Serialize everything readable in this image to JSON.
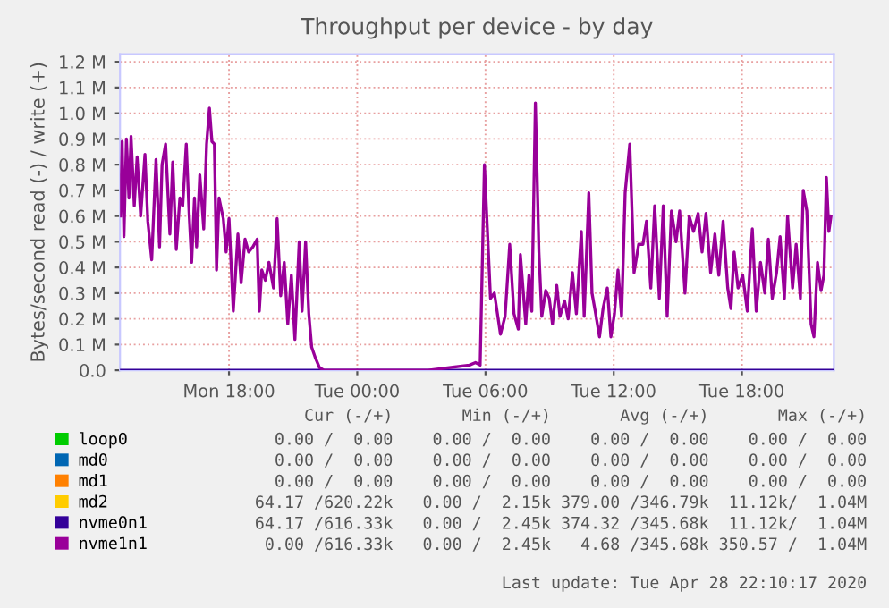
{
  "chart_data": {
    "type": "line",
    "title": "Throughput per device - by day",
    "ylabel": "Bytes/second read (-) / write (+)",
    "xlim": [
      "2020-04-27T12:54",
      "2020-04-28T22:18"
    ],
    "xticks": [
      {
        "value": "2020-04-27T18:00",
        "label": "Mon 18:00"
      },
      {
        "value": "2020-04-28T00:00",
        "label": "Tue 00:00"
      },
      {
        "value": "2020-04-28T06:00",
        "label": "Tue 06:00"
      },
      {
        "value": "2020-04-28T12:00",
        "label": "Tue 12:00"
      },
      {
        "value": "2020-04-28T18:00",
        "label": "Tue 18:00"
      }
    ],
    "ylim": [
      0,
      1230000
    ],
    "yticks": [
      {
        "value": 0,
        "label": "0.0"
      },
      {
        "value": 100000,
        "label": "0.1 M"
      },
      {
        "value": 200000,
        "label": "0.2 M"
      },
      {
        "value": 300000,
        "label": "0.3 M"
      },
      {
        "value": 400000,
        "label": "0.4 M"
      },
      {
        "value": 500000,
        "label": "0.5 M"
      },
      {
        "value": 600000,
        "label": "0.6 M"
      },
      {
        "value": 700000,
        "label": "0.7 M"
      },
      {
        "value": 800000,
        "label": "0.8 M"
      },
      {
        "value": 900000,
        "label": "0.9 M"
      },
      {
        "value": 1000000,
        "label": "1.0 M"
      },
      {
        "value": 1100000,
        "label": "1.1 M"
      },
      {
        "value": 1200000,
        "label": "1.2 M"
      }
    ],
    "grid": true,
    "legend": "bottom",
    "marker": "none",
    "line_style": "solid",
    "series": [
      {
        "name": "loop0",
        "color": "#00cc00"
      },
      {
        "name": "md0",
        "color": "#0066b3"
      },
      {
        "name": "md1",
        "color": "#ff8000"
      },
      {
        "name": "md2",
        "color": "#ffcc00"
      },
      {
        "name": "nvme0n1",
        "color": "#330099",
        "x": [
          "2020-04-27T12:54",
          "2020-04-28T22:18"
        ],
        "values": [
          0,
          0
        ]
      },
      {
        "name": "nvme1n1",
        "color": "#990099",
        "x": [
          "2020-04-27T12:55",
          "2020-04-27T13:00",
          "2020-04-27T13:05",
          "2020-04-27T13:12",
          "2020-04-27T13:19",
          "2020-04-27T13:25",
          "2020-04-27T13:34",
          "2020-04-27T13:42",
          "2020-04-27T13:52",
          "2020-04-27T14:04",
          "2020-04-27T14:12",
          "2020-04-27T14:23",
          "2020-04-27T14:35",
          "2020-04-27T14:45",
          "2020-04-27T14:52",
          "2020-04-27T15:02",
          "2020-04-27T15:14",
          "2020-04-27T15:22",
          "2020-04-27T15:32",
          "2020-04-27T15:42",
          "2020-04-27T15:50",
          "2020-04-27T16:00",
          "2020-04-27T16:08",
          "2020-04-27T16:15",
          "2020-04-27T16:23",
          "2020-04-27T16:29",
          "2020-04-27T16:38",
          "2020-04-27T16:49",
          "2020-04-27T16:57",
          "2020-04-27T17:05",
          "2020-04-27T17:12",
          "2020-04-27T17:19",
          "2020-04-27T17:25",
          "2020-04-27T17:32",
          "2020-04-27T17:44",
          "2020-04-27T17:52",
          "2020-04-27T18:00",
          "2020-04-27T18:12",
          "2020-04-27T18:25",
          "2020-04-27T18:34",
          "2020-04-27T18:45",
          "2020-04-27T18:55",
          "2020-04-27T19:07",
          "2020-04-27T19:19",
          "2020-04-27T19:25",
          "2020-04-27T19:32",
          "2020-04-27T19:42",
          "2020-04-27T19:52",
          "2020-04-27T20:05",
          "2020-04-27T20:15",
          "2020-04-27T20:25",
          "2020-04-27T20:35",
          "2020-04-27T20:45",
          "2020-04-27T20:55",
          "2020-04-27T21:05",
          "2020-04-27T21:17",
          "2020-04-27T21:25",
          "2020-04-27T21:35",
          "2020-04-27T21:44",
          "2020-04-27T21:52",
          "2020-04-27T22:02",
          "2020-04-27T22:14",
          "2020-04-27T22:27",
          "2020-04-28T00:00",
          "2020-04-28T03:19",
          "2020-04-28T05:15",
          "2020-04-28T05:32",
          "2020-04-28T05:45",
          "2020-04-28T05:57",
          "2020-04-28T06:14",
          "2020-04-28T06:25",
          "2020-04-28T06:42",
          "2020-04-28T06:55",
          "2020-04-28T07:08",
          "2020-04-28T07:20",
          "2020-04-28T07:32",
          "2020-04-28T07:38",
          "2020-04-28T07:53",
          "2020-04-28T08:02",
          "2020-04-28T08:10",
          "2020-04-28T08:20",
          "2020-04-28T08:30",
          "2020-04-28T08:38",
          "2020-04-28T08:49",
          "2020-04-28T08:59",
          "2020-04-28T09:08",
          "2020-04-28T09:20",
          "2020-04-28T09:29",
          "2020-04-28T09:42",
          "2020-04-28T09:52",
          "2020-04-28T10:04",
          "2020-04-28T10:15",
          "2020-04-28T10:29",
          "2020-04-28T10:37",
          "2020-04-28T10:50",
          "2020-04-28T10:59",
          "2020-04-28T11:08",
          "2020-04-28T11:20",
          "2020-04-28T11:30",
          "2020-04-28T11:42",
          "2020-04-28T11:52",
          "2020-04-28T12:02",
          "2020-04-28T12:12",
          "2020-04-28T12:22",
          "2020-04-28T12:32",
          "2020-04-28T12:45",
          "2020-04-28T12:57",
          "2020-04-28T13:10",
          "2020-04-28T13:22",
          "2020-04-28T13:32",
          "2020-04-28T13:44",
          "2020-04-28T13:55",
          "2020-04-28T14:08",
          "2020-04-28T14:19",
          "2020-04-28T14:30",
          "2020-04-28T14:42",
          "2020-04-28T14:55",
          "2020-04-28T15:05",
          "2020-04-28T15:20",
          "2020-04-28T15:32",
          "2020-04-28T15:44",
          "2020-04-28T15:57",
          "2020-04-28T16:08",
          "2020-04-28T16:19",
          "2020-04-28T16:32",
          "2020-04-28T16:44",
          "2020-04-28T16:55",
          "2020-04-28T17:07",
          "2020-04-28T17:20",
          "2020-04-28T17:29",
          "2020-04-28T17:38",
          "2020-04-28T17:49",
          "2020-04-28T18:02",
          "2020-04-28T18:15",
          "2020-04-28T18:29",
          "2020-04-28T18:40",
          "2020-04-28T18:52",
          "2020-04-28T19:04",
          "2020-04-28T19:14",
          "2020-04-28T19:25",
          "2020-04-28T19:37",
          "2020-04-28T19:47",
          "2020-04-28T19:59",
          "2020-04-28T20:08",
          "2020-04-28T20:22",
          "2020-04-28T20:32",
          "2020-04-28T20:44",
          "2020-04-28T20:52",
          "2020-04-28T21:02",
          "2020-04-28T21:14",
          "2020-04-28T21:22",
          "2020-04-28T21:32",
          "2020-04-28T21:42",
          "2020-04-28T21:50",
          "2020-04-28T21:57",
          "2020-04-28T22:04",
          "2020-04-28T22:10"
        ],
        "values": [
          600000,
          890000,
          520000,
          900000,
          670000,
          910000,
          640000,
          830000,
          600000,
          840000,
          580000,
          430000,
          820000,
          480000,
          800000,
          880000,
          530000,
          810000,
          470000,
          670000,
          640000,
          880000,
          610000,
          420000,
          670000,
          480000,
          760000,
          550000,
          880000,
          1020000,
          890000,
          880000,
          390000,
          670000,
          590000,
          460000,
          590000,
          230000,
          530000,
          340000,
          510000,
          460000,
          480000,
          510000,
          230000,
          390000,
          350000,
          420000,
          320000,
          590000,
          290000,
          420000,
          180000,
          370000,
          120000,
          500000,
          230000,
          500000,
          220000,
          90000,
          50000,
          10000,
          0,
          0,
          0,
          20000,
          30000,
          20000,
          800000,
          280000,
          300000,
          140000,
          210000,
          490000,
          220000,
          160000,
          450000,
          180000,
          370000,
          230000,
          1040000,
          460000,
          210000,
          310000,
          280000,
          180000,
          330000,
          210000,
          270000,
          200000,
          380000,
          220000,
          540000,
          210000,
          690000,
          300000,
          230000,
          130000,
          240000,
          320000,
          130000,
          220000,
          390000,
          210000,
          690000,
          880000,
          380000,
          490000,
          490000,
          580000,
          320000,
          640000,
          280000,
          640000,
          210000,
          620000,
          500000,
          620000,
          300000,
          600000,
          540000,
          610000,
          460000,
          610000,
          380000,
          530000,
          370000,
          580000,
          320000,
          240000,
          460000,
          320000,
          370000,
          230000,
          550000,
          230000,
          420000,
          300000,
          510000,
          280000,
          380000,
          520000,
          280000,
          600000,
          320000,
          490000,
          280000,
          700000,
          620000,
          180000,
          130000,
          420000,
          310000,
          370000,
          750000,
          540000,
          600000
        ]
      }
    ],
    "annotations": [
      "    Cur (-/+)       Min (-/+)       Avg (-/+)       Max (-/+)",
      "   0.00 /  0.00    0.00 /  0.00    0.00 /  0.00    0.00 /  0.00",
      "   0.00 /  0.00    0.00 /  0.00    0.00 /  0.00    0.00 /  0.00",
      "   0.00 /  0.00    0.00 /  0.00    0.00 /  0.00    0.00 /  0.00",
      " 64.17 /620.22k   0.00 /  2.15k 379.00 /346.79k  11.12k/  1.04M",
      " 64.17 /616.33k   0.00 /  2.45k 374.32 /345.68k  11.12k/  1.04M",
      "  0.00 /616.33k   0.00 /  2.45k   4.68 /345.68k 350.57 /  1.04M",
      "Last update: Tue Apr 28 22:10:17 2020"
    ]
  }
}
